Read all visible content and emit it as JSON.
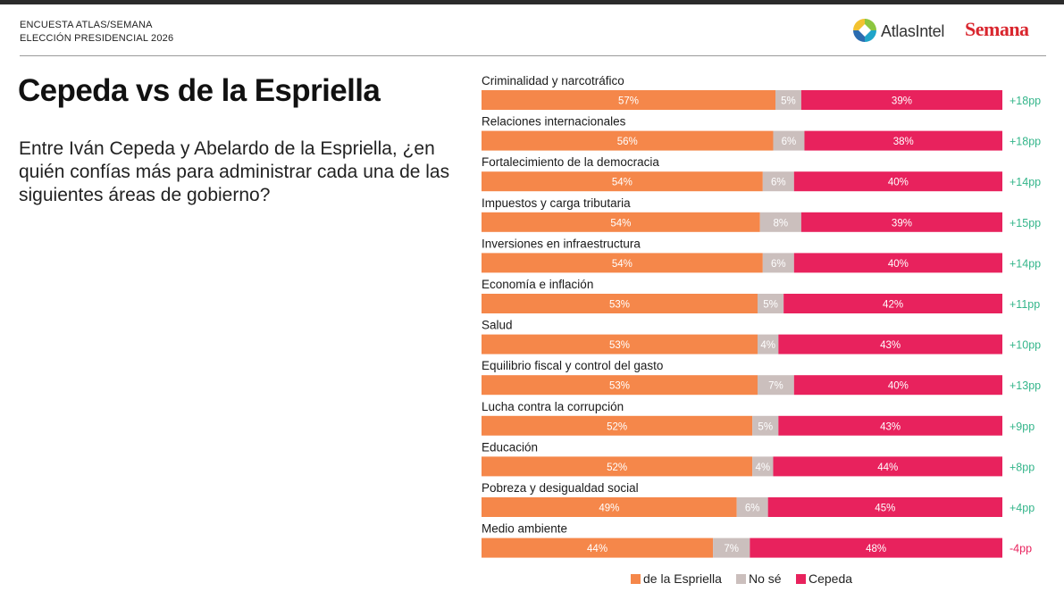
{
  "header": {
    "survey_line": "ENCUESTA ATLAS/SEMANA",
    "election_line": "ELECCIÓN PRESIDENCIAL 2026",
    "atlas_logo_text": "AtlasIntel",
    "semana_logo_text": "Semana"
  },
  "title": "Cepeda vs de la Espriella",
  "question": "Entre Iván Cepeda y Abelardo de la Espriella, ¿en quién confías más para administrar cada una de las siguientes áreas de gobierno?",
  "colors": {
    "espriella": "#f5874a",
    "no_se": "#cbbfbd",
    "cepeda": "#e8225d",
    "diff_positive": "#33b58a",
    "diff_negative": "#e8225d"
  },
  "chart_data": {
    "type": "bar",
    "orientation": "horizontal",
    "stacked": true,
    "normalized": true,
    "categories": [
      "Criminalidad y narcotráfico",
      "Relaciones internacionales",
      "Fortalecimiento de la democracia",
      "Impuestos y carga tributaria",
      "Inversiones en infraestructura",
      "Economía e inflación",
      "Salud",
      "Equilibrio fiscal y control del gasto",
      "Lucha contra la corrupción",
      "Educación",
      "Pobreza y desigualdad social",
      "Medio ambiente"
    ],
    "series": [
      {
        "name": "de la Espriella",
        "color": "#f5874a",
        "values": [
          57,
          56,
          54,
          54,
          54,
          53,
          53,
          53,
          52,
          52,
          49,
          44
        ]
      },
      {
        "name": "No sé",
        "color": "#cbbfbd",
        "values": [
          5,
          6,
          6,
          8,
          6,
          5,
          4,
          7,
          5,
          4,
          6,
          7
        ]
      },
      {
        "name": "Cepeda",
        "color": "#e8225d",
        "values": [
          39,
          38,
          40,
          39,
          40,
          42,
          43,
          40,
          43,
          44,
          45,
          48
        ]
      }
    ],
    "value_labels": [
      [
        "57%",
        "5%",
        "39%"
      ],
      [
        "56%",
        "6%",
        "38%"
      ],
      [
        "54%",
        "6%",
        "40%"
      ],
      [
        "54%",
        "8%",
        "39%"
      ],
      [
        "54%",
        "6%",
        "40%"
      ],
      [
        "53%",
        "5%",
        "42%"
      ],
      [
        "53%",
        "4%",
        "43%"
      ],
      [
        "53%",
        "7%",
        "40%"
      ],
      [
        "52%",
        "5%",
        "43%"
      ],
      [
        "52%",
        "4%",
        "44%"
      ],
      [
        "49%",
        "6%",
        "45%"
      ],
      [
        "44%",
        "7%",
        "48%"
      ]
    ],
    "differences": [
      "+18pp",
      "+18pp",
      "+14pp",
      "+15pp",
      "+14pp",
      "+11pp",
      "+10pp",
      "+13pp",
      "+9pp",
      "+8pp",
      "+4pp",
      "-4pp"
    ],
    "difference_signs": [
      1,
      1,
      1,
      1,
      1,
      1,
      1,
      1,
      1,
      1,
      1,
      -1
    ],
    "legend": [
      "de la Espriella",
      "No sé",
      "Cepeda"
    ],
    "legend_position": "bottom",
    "grid": false
  }
}
